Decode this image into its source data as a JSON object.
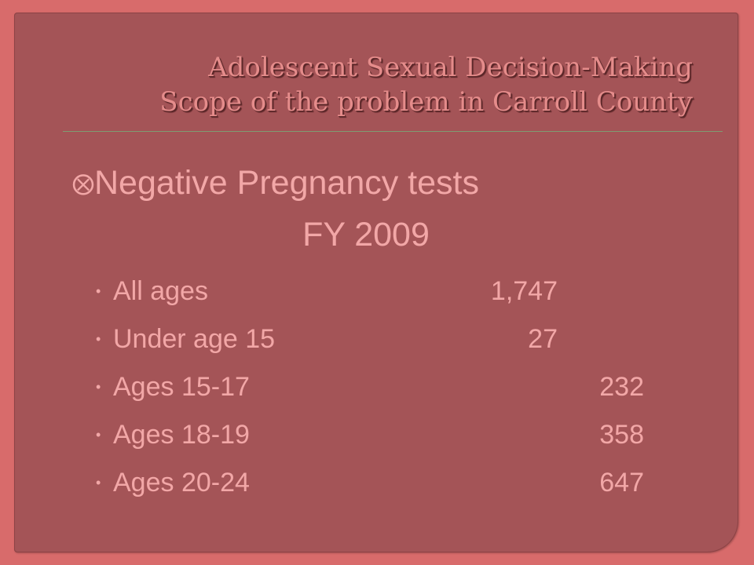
{
  "slide": {
    "title_line1": "Adolescent Sexual Decision-Making",
    "title_line2": "Scope of the problem in Carroll County",
    "heading_icon": "circled-cross-bullet-icon",
    "heading_line1": "Negative Pregnancy tests",
    "heading_line2": "FY 2009",
    "items": [
      {
        "label": "All ages",
        "value": "1,747"
      },
      {
        "label": "Under age 15",
        "value": "27"
      },
      {
        "label": "Ages 15-17",
        "value": "232"
      },
      {
        "label": "Ages 18-19",
        "value": "358"
      },
      {
        "label": "Ages 20-24",
        "value": "647"
      }
    ]
  },
  "colors": {
    "border": "#d86b6b",
    "background": "#a45457",
    "text": "#f2a7a7",
    "title": "#e58c8b",
    "rule": "#7f9b72"
  }
}
